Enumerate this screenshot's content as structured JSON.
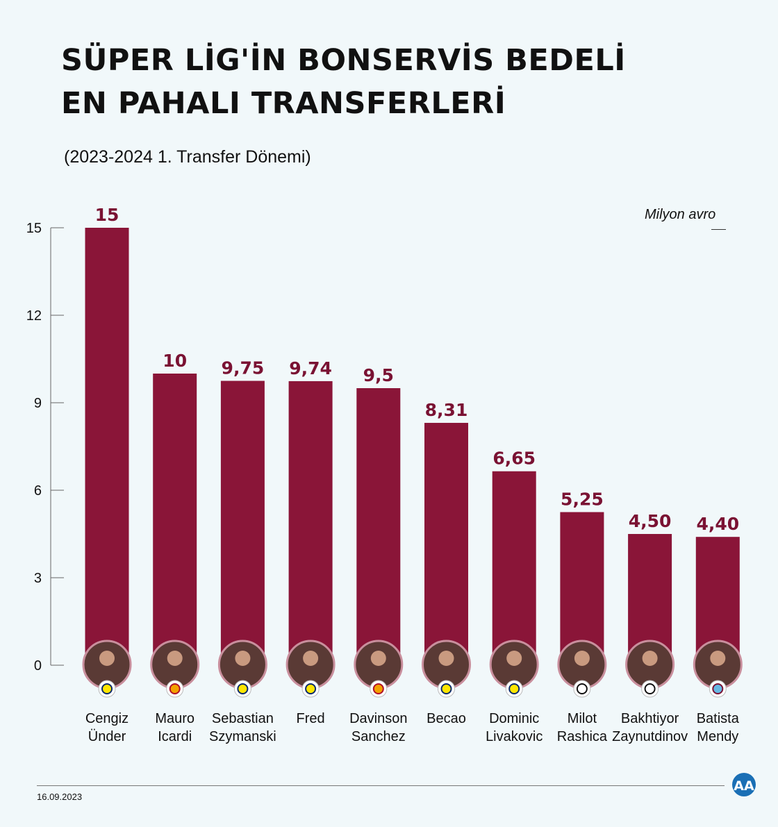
{
  "title_line1": "SÜPER LİG'İN BONSERVİS BEDELİ",
  "title_line2": "EN PAHALI TRANSFERLERİ",
  "subtitle": "(2023-2024 1. Transfer Dönemi)",
  "unit": "Milyon avro",
  "date": "16.09.2023",
  "colors": {
    "bar": "#8a1538",
    "label": "#7a1233",
    "background": "#f1f8fa"
  },
  "chart_data": {
    "type": "bar",
    "title": "SÜPER LİG'İN BONSERVİS BEDELİ EN PAHALI TRANSFERLERİ",
    "ylabel": "Milyon avro",
    "ylim": [
      0,
      15
    ],
    "yticks": [
      "0",
      "3",
      "6",
      "9",
      "12",
      "15"
    ],
    "grid": false,
    "categories": [
      [
        "Cengiz",
        "Ünder"
      ],
      [
        "Mauro",
        "Icardi"
      ],
      [
        "Sebastian",
        "Szymanski"
      ],
      [
        "Fred",
        ""
      ],
      [
        "Davinson",
        "Sanchez"
      ],
      [
        "Becao",
        ""
      ],
      [
        "Dominic",
        "Livakovic"
      ],
      [
        "Milot",
        "Rashica"
      ],
      [
        "Bakhtiyor",
        "Zaynutdinov"
      ],
      [
        "Batista",
        "Mendy"
      ]
    ],
    "values": [
      15,
      10,
      9.75,
      9.74,
      9.5,
      8.31,
      6.65,
      5.25,
      4.5,
      4.4
    ],
    "value_labels": [
      "15",
      "10",
      "9,75",
      "9,74",
      "9,5",
      "8,31",
      "6,65",
      "5,25",
      "4,50",
      "4,40"
    ],
    "clubs": [
      "fenerbahce",
      "galatasaray",
      "fenerbahce",
      "fenerbahce",
      "galatasaray",
      "fenerbahce",
      "fenerbahce",
      "besiktas",
      "besiktas",
      "trabzonspor"
    ]
  }
}
